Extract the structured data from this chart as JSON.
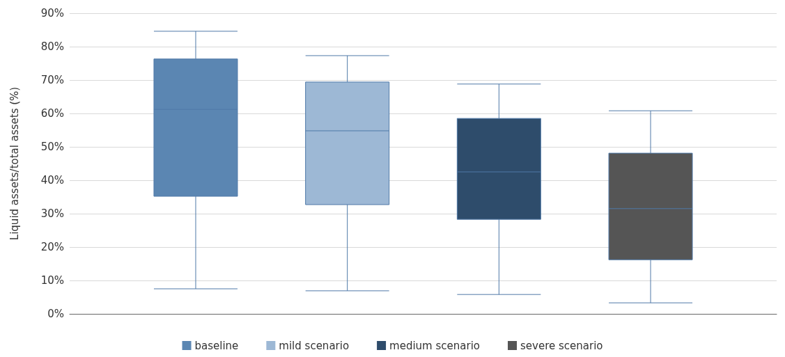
{
  "chart_data": {
    "type": "box",
    "ylabel": "Liquid assets/total assets (%)",
    "categories": [
      null
    ],
    "ylim": [
      0,
      90
    ],
    "yticks": [
      {
        "value": 0,
        "label": "0%"
      },
      {
        "value": 10,
        "label": "10%"
      },
      {
        "value": 20,
        "label": "20%"
      },
      {
        "value": 30,
        "label": "30%"
      },
      {
        "value": 40,
        "label": "40%"
      },
      {
        "value": 50,
        "label": "50%"
      },
      {
        "value": 60,
        "label": "60%"
      },
      {
        "value": 70,
        "label": "70%"
      },
      {
        "value": 80,
        "label": "80%"
      },
      {
        "value": 90,
        "label": "90%"
      }
    ],
    "grid": "y",
    "legend": "bottom",
    "series": [
      {
        "name": "baseline",
        "color": "#5b86b2",
        "boxes": [
          {
            "low": 7.5,
            "q1": 35.2,
            "median": 61.2,
            "q3": 76.3,
            "high": 84.6
          }
        ]
      },
      {
        "name": "mild scenario",
        "color": "#9db8d5",
        "boxes": [
          {
            "low": 6.9,
            "q1": 32.7,
            "median": 54.8,
            "q3": 69.4,
            "high": 77.3
          }
        ]
      },
      {
        "name": "medium scenario",
        "color": "#2e4c6b",
        "boxes": [
          {
            "low": 5.8,
            "q1": 28.3,
            "median": 42.5,
            "q3": 58.5,
            "high": 68.8
          }
        ]
      },
      {
        "name": "severe scenario",
        "color": "#555555",
        "boxes": [
          {
            "low": 3.3,
            "q1": 16.2,
            "median": 31.5,
            "q3": 48.1,
            "high": 60.8
          }
        ]
      }
    ]
  }
}
